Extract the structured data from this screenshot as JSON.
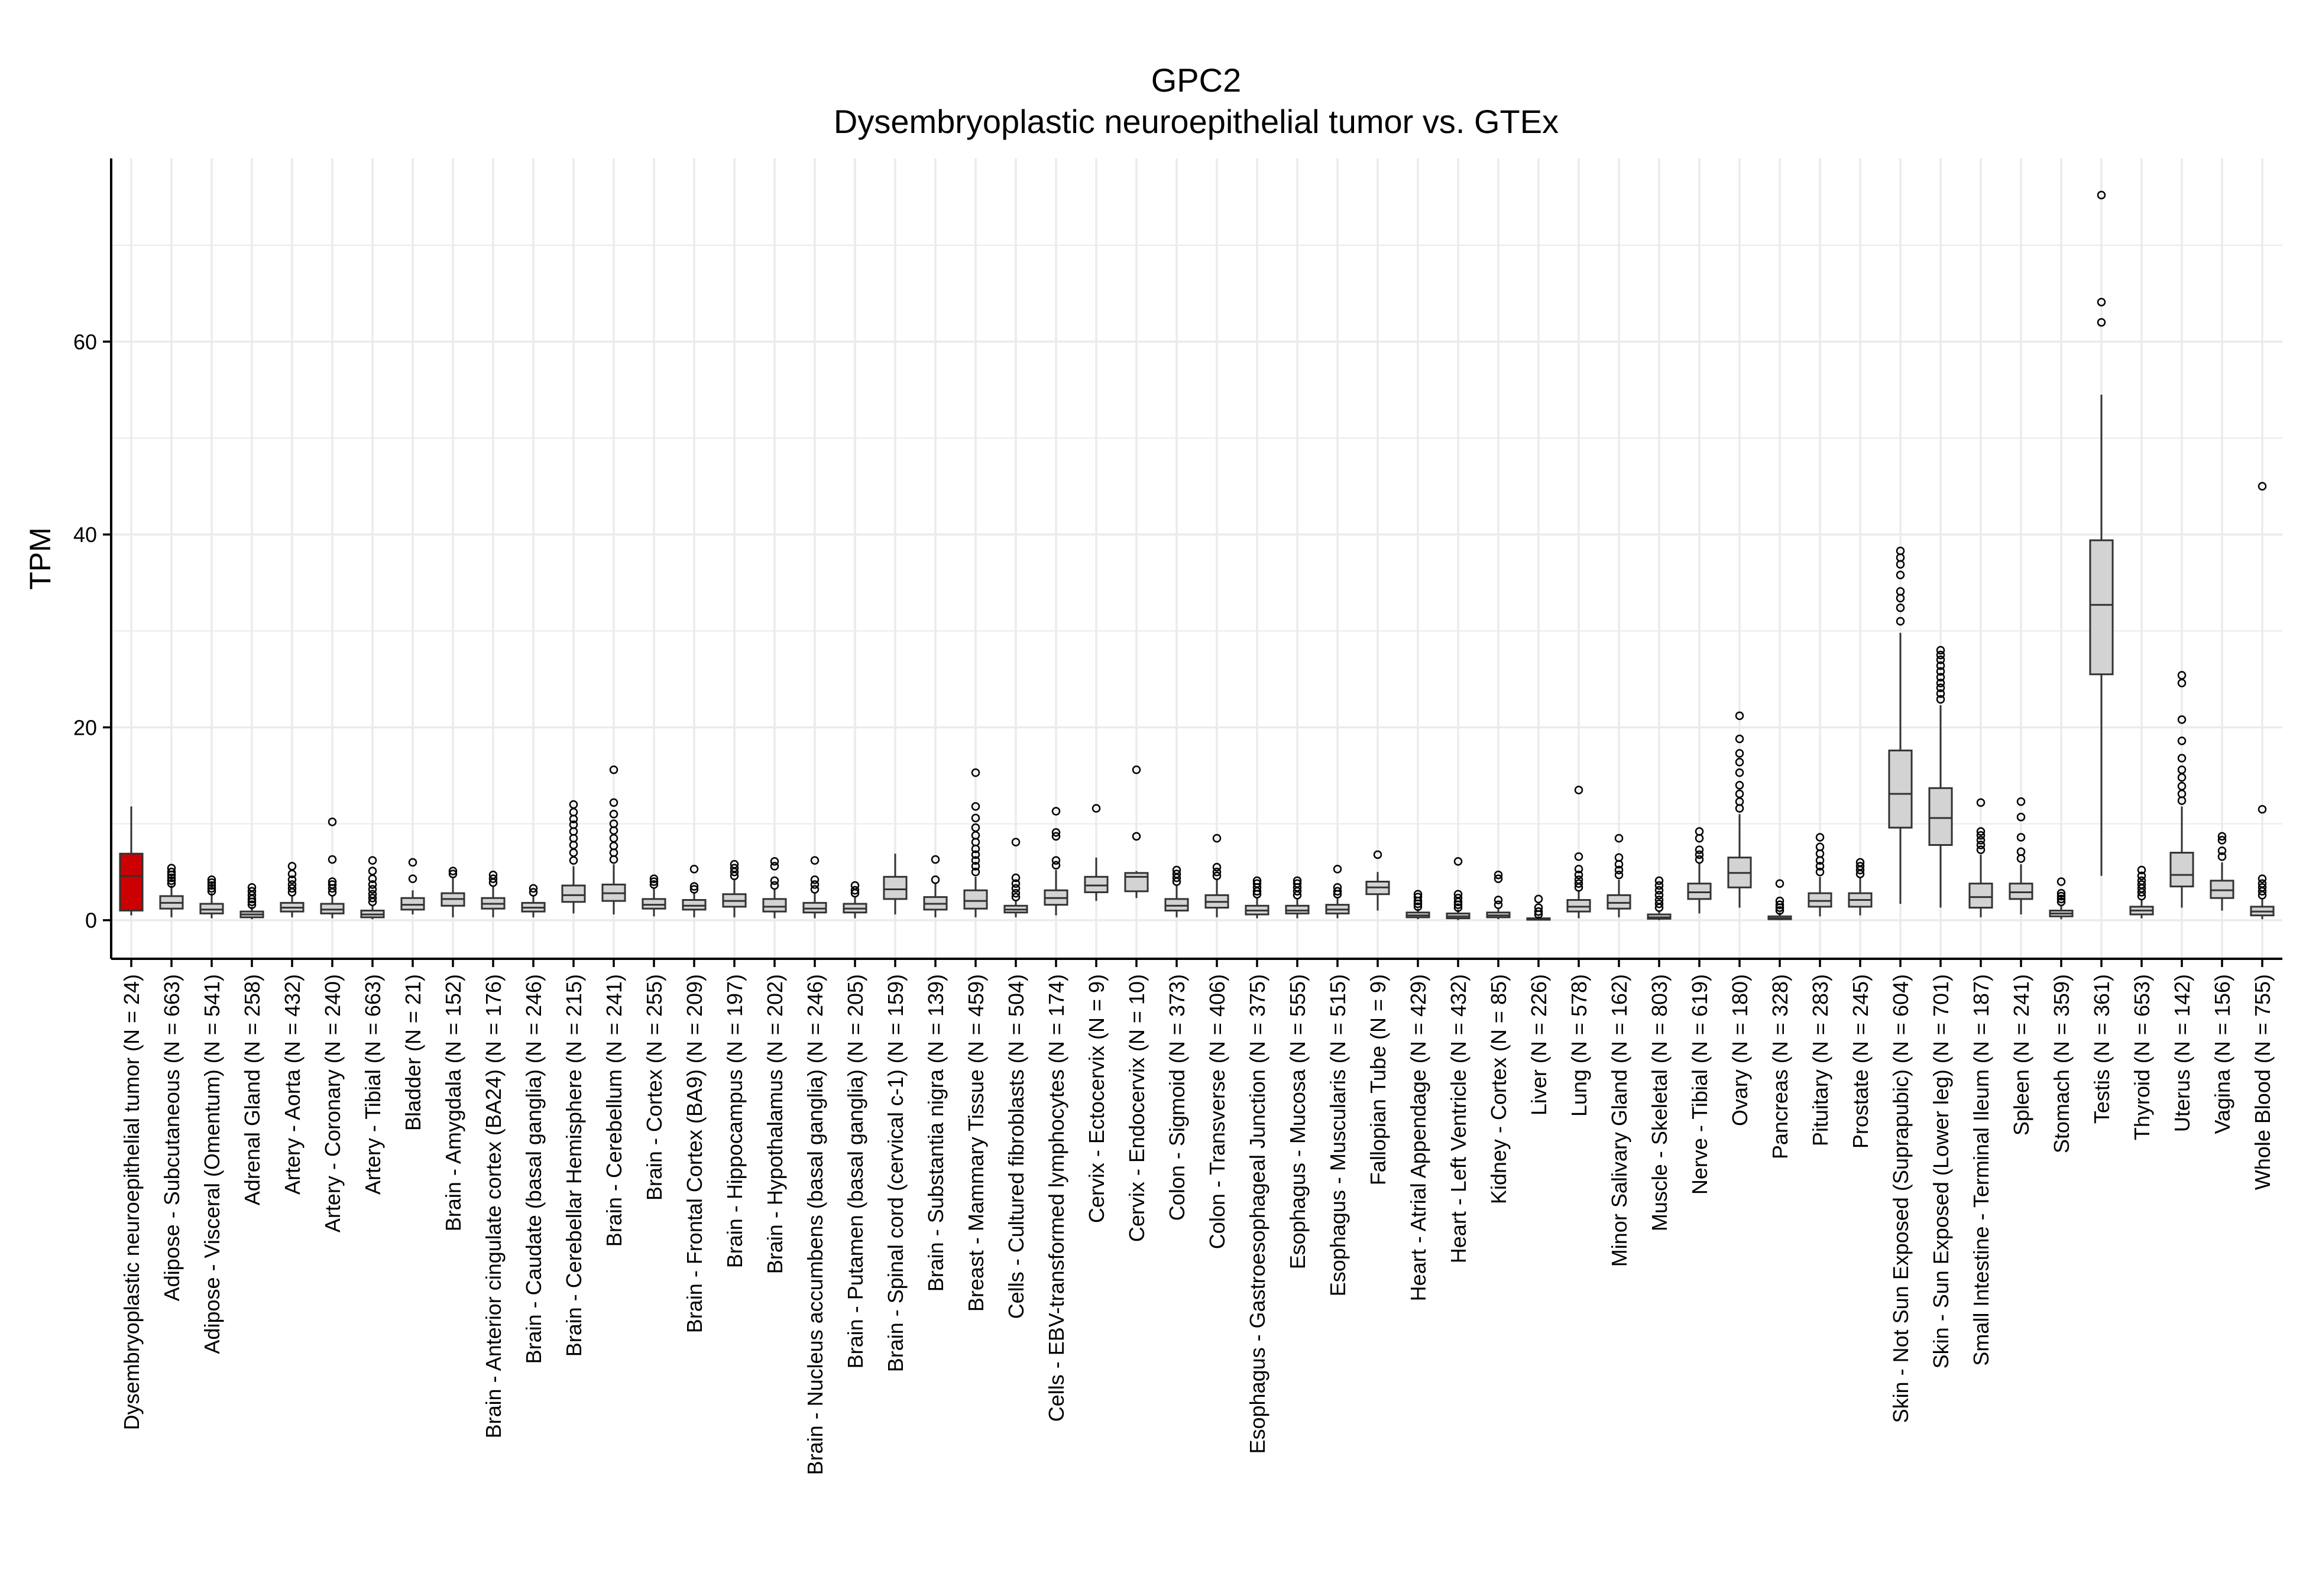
{
  "chart_data": {
    "type": "box",
    "title": "GPC2",
    "subtitle": "Dysembryoplastic neuroepithelial tumor vs. GTEx",
    "ylabel": "TPM",
    "xlabel": "",
    "ylim": [
      -4,
      79
    ],
    "yticks": [
      0,
      20,
      40,
      60
    ],
    "grid": true,
    "legend": "none",
    "colors": {
      "tumor": "#cc0000",
      "normal": "#d3d3d3",
      "grid": "#ebebeb",
      "line": "#333333"
    },
    "boxes": [
      {
        "label": "Dysembryoplastic neuroepithelial tumor (N = 24)",
        "highlight": true,
        "q1": 1.0,
        "median": 4.6,
        "q3": 6.9,
        "lower": 0.5,
        "upper": 11.8,
        "outliers": []
      },
      {
        "label": "Adipose - Subcutaneous (N = 663)",
        "q1": 1.2,
        "median": 1.8,
        "q3": 2.5,
        "lower": 0.3,
        "upper": 3.6,
        "outliers": [
          3.8,
          4.1,
          4.4,
          4.7,
          5.0,
          5.4
        ]
      },
      {
        "label": "Adipose - Visceral (Omentum) (N = 541)",
        "q1": 0.7,
        "median": 1.1,
        "q3": 1.7,
        "lower": 0.2,
        "upper": 2.8,
        "outliers": [
          3.0,
          3.3,
          3.6,
          3.9,
          4.2
        ]
      },
      {
        "label": "Adrenal Gland (N = 258)",
        "q1": 0.3,
        "median": 0.6,
        "q3": 0.9,
        "lower": 0.1,
        "upper": 1.4,
        "outliers": [
          1.6,
          1.9,
          2.2,
          2.6,
          3.0,
          3.4
        ]
      },
      {
        "label": "Artery - Aorta (N = 432)",
        "q1": 0.9,
        "median": 1.3,
        "q3": 1.8,
        "lower": 0.3,
        "upper": 2.6,
        "outliers": [
          2.9,
          3.3,
          3.7,
          4.2,
          4.8,
          5.6
        ]
      },
      {
        "label": "Artery - Coronary (N = 240)",
        "q1": 0.7,
        "median": 1.1,
        "q3": 1.7,
        "lower": 0.2,
        "upper": 2.6,
        "outliers": [
          2.9,
          3.3,
          3.7,
          4.0,
          6.3,
          10.2
        ]
      },
      {
        "label": "Artery - Tibial (N = 663)",
        "q1": 0.3,
        "median": 0.6,
        "q3": 1.0,
        "lower": 0.1,
        "upper": 1.6,
        "outliers": [
          1.9,
          2.3,
          2.7,
          3.2,
          3.7,
          4.3,
          5.1,
          6.2
        ]
      },
      {
        "label": "Bladder (N = 21)",
        "q1": 1.1,
        "median": 1.6,
        "q3": 2.3,
        "lower": 0.6,
        "upper": 3.1,
        "outliers": [
          4.3,
          6.0
        ]
      },
      {
        "label": "Brain - Amygdala (N = 152)",
        "q1": 1.5,
        "median": 2.2,
        "q3": 2.8,
        "lower": 0.3,
        "upper": 4.5,
        "outliers": [
          4.8,
          5.1
        ]
      },
      {
        "label": "Brain - Anterior cingulate cortex (BA24) (N = 176)",
        "q1": 1.2,
        "median": 1.7,
        "q3": 2.3,
        "lower": 0.3,
        "upper": 3.6,
        "outliers": [
          3.9,
          4.3,
          4.7
        ]
      },
      {
        "label": "Brain - Caudate (basal ganglia) (N = 246)",
        "q1": 0.9,
        "median": 1.3,
        "q3": 1.8,
        "lower": 0.3,
        "upper": 2.6,
        "outliers": [
          2.9,
          3.3
        ]
      },
      {
        "label": "Brain - Cerebellar Hemisphere (N = 215)",
        "q1": 1.9,
        "median": 2.6,
        "q3": 3.6,
        "lower": 0.7,
        "upper": 5.6,
        "outliers": [
          6.2,
          7.0,
          7.8,
          8.5,
          9.2,
          9.9,
          10.5,
          11.2,
          12.0
        ]
      },
      {
        "label": "Brain - Cerebellum (N = 241)",
        "q1": 2.0,
        "median": 2.8,
        "q3": 3.7,
        "lower": 0.6,
        "upper": 5.8,
        "outliers": [
          6.3,
          7.0,
          7.7,
          8.5,
          9.3,
          10.0,
          11.0,
          12.2,
          15.6
        ]
      },
      {
        "label": "Brain - Cortex (N = 255)",
        "q1": 1.2,
        "median": 1.6,
        "q3": 2.2,
        "lower": 0.4,
        "upper": 3.4,
        "outliers": [
          3.7,
          4.0,
          4.3
        ]
      },
      {
        "label": "Brain - Frontal Cortex (BA9) (N = 209)",
        "q1": 1.1,
        "median": 1.5,
        "q3": 2.1,
        "lower": 0.3,
        "upper": 2.9,
        "outliers": [
          3.2,
          3.5,
          5.3
        ]
      },
      {
        "label": "Brain - Hippocampus (N = 197)",
        "q1": 1.4,
        "median": 2.0,
        "q3": 2.7,
        "lower": 0.3,
        "upper": 4.2,
        "outliers": [
          4.6,
          5.0,
          5.4,
          5.8
        ]
      },
      {
        "label": "Brain - Hypothalamus (N = 202)",
        "q1": 0.9,
        "median": 1.4,
        "q3": 2.2,
        "lower": 0.2,
        "upper": 3.2,
        "outliers": [
          3.6,
          4.1,
          5.6,
          6.1
        ]
      },
      {
        "label": "Brain - Nucleus accumbens (basal ganglia) (N = 246)",
        "q1": 0.8,
        "median": 1.2,
        "q3": 1.8,
        "lower": 0.2,
        "upper": 2.8,
        "outliers": [
          3.2,
          3.7,
          4.2,
          6.2
        ]
      },
      {
        "label": "Brain - Putamen (basal ganglia) (N = 205)",
        "q1": 0.8,
        "median": 1.2,
        "q3": 1.7,
        "lower": 0.2,
        "upper": 2.5,
        "outliers": [
          2.8,
          3.1,
          3.6
        ]
      },
      {
        "label": "Brain - Spinal cord (cervical c-1) (N = 159)",
        "q1": 2.2,
        "median": 3.2,
        "q3": 4.5,
        "lower": 0.6,
        "upper": 6.9,
        "outliers": []
      },
      {
        "label": "Brain - Substantia nigra (N = 139)",
        "q1": 1.1,
        "median": 1.7,
        "q3": 2.4,
        "lower": 0.3,
        "upper": 3.8,
        "outliers": [
          4.2,
          6.3
        ]
      },
      {
        "label": "Breast - Mammary Tissue (N = 459)",
        "q1": 1.2,
        "median": 2.0,
        "q3": 3.1,
        "lower": 0.3,
        "upper": 4.5,
        "outliers": [
          5.0,
          5.6,
          6.2,
          6.8,
          7.4,
          8.1,
          8.8,
          9.6,
          10.6,
          11.8,
          15.3
        ]
      },
      {
        "label": "Cells - Cultured fibroblasts (N = 504)",
        "q1": 0.8,
        "median": 1.1,
        "q3": 1.5,
        "lower": 0.3,
        "upper": 2.1,
        "outliers": [
          2.4,
          2.8,
          3.3,
          3.8,
          4.4,
          8.1
        ]
      },
      {
        "label": "Cells - EBV-transformed lymphocytes (N = 174)",
        "q1": 1.6,
        "median": 2.3,
        "q3": 3.1,
        "lower": 0.5,
        "upper": 5.2,
        "outliers": [
          5.7,
          6.2,
          8.7,
          9.1,
          11.3
        ]
      },
      {
        "label": "Cervix - Ectocervix (N = 9)",
        "q1": 2.9,
        "median": 3.6,
        "q3": 4.5,
        "lower": 2.0,
        "upper": 6.5,
        "outliers": [
          11.6
        ]
      },
      {
        "label": "Cervix - Endocervix (N = 10)",
        "q1": 3.0,
        "median": 4.5,
        "q3": 4.9,
        "lower": 2.3,
        "upper": 5.1,
        "outliers": [
          8.7,
          15.6
        ]
      },
      {
        "label": "Colon - Sigmoid (N = 373)",
        "q1": 1.0,
        "median": 1.5,
        "q3": 2.2,
        "lower": 0.3,
        "upper": 3.6,
        "outliers": [
          4.0,
          4.4,
          4.8,
          5.2
        ]
      },
      {
        "label": "Colon - Transverse (N = 406)",
        "q1": 1.3,
        "median": 1.9,
        "q3": 2.6,
        "lower": 0.3,
        "upper": 4.2,
        "outliers": [
          4.6,
          5.0,
          5.5,
          8.5
        ]
      },
      {
        "label": "Esophagus - Gastroesophageal Junction (N = 375)",
        "q1": 0.6,
        "median": 1.0,
        "q3": 1.5,
        "lower": 0.2,
        "upper": 2.4,
        "outliers": [
          2.7,
          3.0,
          3.4,
          3.8,
          4.1
        ]
      },
      {
        "label": "Esophagus - Mucosa (N = 555)",
        "q1": 0.7,
        "median": 1.0,
        "q3": 1.5,
        "lower": 0.2,
        "upper": 2.3,
        "outliers": [
          2.6,
          3.0,
          3.4,
          3.8,
          4.1
        ]
      },
      {
        "label": "Esophagus - Muscularis (N = 515)",
        "q1": 0.7,
        "median": 1.1,
        "q3": 1.6,
        "lower": 0.2,
        "upper": 2.4,
        "outliers": [
          2.7,
          3.0,
          3.4,
          5.3
        ]
      },
      {
        "label": "Fallopian Tube (N = 9)",
        "q1": 2.7,
        "median": 3.4,
        "q3": 4.0,
        "lower": 1.0,
        "upper": 5.0,
        "outliers": [
          6.8
        ]
      },
      {
        "label": "Heart - Atrial Appendage (N = 429)",
        "q1": 0.3,
        "median": 0.5,
        "q3": 0.8,
        "lower": 0.1,
        "upper": 1.2,
        "outliers": [
          1.4,
          1.7,
          2.0,
          2.4,
          2.7
        ]
      },
      {
        "label": "Heart - Left Ventricle (N = 432)",
        "q1": 0.2,
        "median": 0.4,
        "q3": 0.7,
        "lower": 0.0,
        "upper": 1.1,
        "outliers": [
          1.3,
          1.6,
          1.9,
          2.3,
          2.7,
          6.1
        ]
      },
      {
        "label": "Kidney - Cortex (N = 85)",
        "q1": 0.3,
        "median": 0.5,
        "q3": 0.8,
        "lower": 0.1,
        "upper": 1.2,
        "outliers": [
          1.6,
          2.1,
          4.3,
          4.7
        ]
      },
      {
        "label": "Liver (N = 226)",
        "q1": 0.05,
        "median": 0.1,
        "q3": 0.2,
        "lower": 0.0,
        "upper": 0.4,
        "outliers": [
          0.6,
          0.9,
          1.3,
          2.2
        ]
      },
      {
        "label": "Lung (N = 578)",
        "q1": 0.9,
        "median": 1.4,
        "q3": 2.1,
        "lower": 0.2,
        "upper": 3.1,
        "outliers": [
          3.4,
          3.8,
          4.2,
          4.7,
          5.3,
          6.6,
          13.5
        ]
      },
      {
        "label": "Minor Salivary Gland (N = 162)",
        "q1": 1.2,
        "median": 1.8,
        "q3": 2.6,
        "lower": 0.3,
        "upper": 4.2,
        "outliers": [
          4.7,
          5.2,
          5.8,
          6.5,
          8.5
        ]
      },
      {
        "label": "Muscle - Skeletal (N = 803)",
        "q1": 0.15,
        "median": 0.3,
        "q3": 0.6,
        "lower": 0.0,
        "upper": 1.0,
        "outliers": [
          1.3,
          1.7,
          2.1,
          2.6,
          3.1,
          3.6,
          4.1
        ]
      },
      {
        "label": "Nerve - Tibial (N = 619)",
        "q1": 2.2,
        "median": 2.9,
        "q3": 3.8,
        "lower": 0.7,
        "upper": 5.9,
        "outliers": [
          6.3,
          6.8,
          7.3,
          8.5,
          9.2
        ]
      },
      {
        "label": "Ovary (N = 180)",
        "q1": 3.4,
        "median": 4.9,
        "q3": 6.5,
        "lower": 1.3,
        "upper": 11.0,
        "outliers": [
          11.6,
          12.3,
          13.1,
          14.0,
          15.3,
          16.4,
          17.3,
          18.8,
          21.2
        ]
      },
      {
        "label": "Pancreas (N = 328)",
        "q1": 0.1,
        "median": 0.2,
        "q3": 0.4,
        "lower": 0.0,
        "upper": 0.8,
        "outliers": [
          1.0,
          1.3,
          1.6,
          2.0,
          3.8
        ]
      },
      {
        "label": "Pituitary (N = 283)",
        "q1": 1.4,
        "median": 2.0,
        "q3": 2.8,
        "lower": 0.4,
        "upper": 4.5,
        "outliers": [
          5.0,
          5.6,
          6.2,
          6.9,
          7.6,
          8.6
        ]
      },
      {
        "label": "Prostate (N = 245)",
        "q1": 1.4,
        "median": 2.1,
        "q3": 2.8,
        "lower": 0.5,
        "upper": 4.4,
        "outliers": [
          4.8,
          5.2,
          5.6,
          6.0
        ]
      },
      {
        "label": "Skin - Not Sun Exposed (Suprapubic) (N = 604)",
        "q1": 9.6,
        "median": 13.1,
        "q3": 17.6,
        "lower": 1.7,
        "upper": 29.8,
        "outliers": [
          31.0,
          32.4,
          33.4,
          34.1,
          35.8,
          36.9,
          37.6,
          38.3
        ]
      },
      {
        "label": "Skin - Sun Exposed (Lower leg) (N = 701)",
        "q1": 7.8,
        "median": 10.6,
        "q3": 13.7,
        "lower": 1.3,
        "upper": 22.3,
        "outliers": [
          22.9,
          23.5,
          24.1,
          24.6,
          25.2,
          25.8,
          26.4,
          27.0,
          27.5,
          28.0
        ]
      },
      {
        "label": "Small Intestine - Terminal Ileum (N = 187)",
        "q1": 1.3,
        "median": 2.4,
        "q3": 3.8,
        "lower": 0.3,
        "upper": 6.8,
        "outliers": [
          7.3,
          7.8,
          8.3,
          8.8,
          9.2,
          12.2
        ]
      },
      {
        "label": "Spleen (N = 241)",
        "q1": 2.2,
        "median": 2.9,
        "q3": 3.8,
        "lower": 0.6,
        "upper": 5.8,
        "outliers": [
          6.4,
          7.1,
          8.6,
          10.7,
          12.3
        ]
      },
      {
        "label": "Stomach (N = 359)",
        "q1": 0.4,
        "median": 0.7,
        "q3": 1.0,
        "lower": 0.1,
        "upper": 1.6,
        "outliers": [
          1.9,
          2.2,
          2.5,
          2.8,
          4.0
        ]
      },
      {
        "label": "Testis (N = 361)",
        "q1": 25.5,
        "median": 32.7,
        "q3": 39.4,
        "lower": 4.6,
        "upper": 54.5,
        "outliers": [
          62.0,
          64.1,
          75.2
        ]
      },
      {
        "label": "Thyroid (N = 653)",
        "q1": 0.6,
        "median": 1.0,
        "q3": 1.4,
        "lower": 0.2,
        "upper": 2.2,
        "outliers": [
          2.5,
          2.9,
          3.3,
          3.7,
          4.1,
          4.6,
          5.2
        ]
      },
      {
        "label": "Uterus (N = 142)",
        "q1": 3.5,
        "median": 4.7,
        "q3": 7.0,
        "lower": 1.3,
        "upper": 11.8,
        "outliers": [
          12.4,
          13.1,
          13.9,
          14.8,
          15.6,
          16.8,
          18.6,
          20.8,
          24.6,
          25.4
        ]
      },
      {
        "label": "Vagina (N = 156)",
        "q1": 2.3,
        "median": 3.1,
        "q3": 4.1,
        "lower": 1.0,
        "upper": 6.0,
        "outliers": [
          6.6,
          7.2,
          8.3,
          8.7
        ]
      },
      {
        "label": "Whole Blood (N = 755)",
        "q1": 0.5,
        "median": 0.9,
        "q3": 1.4,
        "lower": 0.1,
        "upper": 2.3,
        "outliers": [
          2.6,
          3.0,
          3.4,
          3.8,
          4.3,
          11.5,
          45.0
        ]
      }
    ]
  }
}
